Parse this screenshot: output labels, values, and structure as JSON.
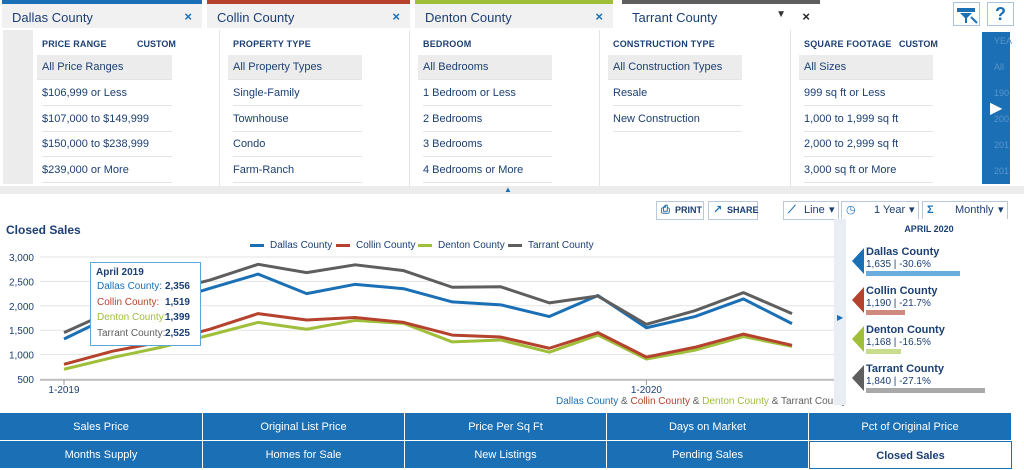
{
  "tabs": [
    {
      "label": "Dallas County",
      "color": "#1a6fb5"
    },
    {
      "label": "Collin County",
      "color": "#b5422d"
    },
    {
      "label": "Denton County",
      "color": "#9fbe3a"
    },
    {
      "label": "Tarrant County",
      "color": "#5e5e5e"
    }
  ],
  "tab_close": "×",
  "tab_dropdown": "▼",
  "toolbar": {
    "filter_icon": "filter-icon",
    "help_label": "?"
  },
  "filters": [
    {
      "header": "PRICE RANGE",
      "custom": "CUSTOM",
      "options": [
        "All Price Ranges",
        "$106,999 or Less",
        "$107,000 to $149,999",
        "$150,000 to $238,999",
        "$239,000 or More"
      ]
    },
    {
      "header": "PROPERTY TYPE",
      "custom": "",
      "options": [
        "All Property Types",
        "Single-Family",
        "Townhouse",
        "Condo",
        "Farm-Ranch"
      ]
    },
    {
      "header": "BEDROOM",
      "custom": "",
      "options": [
        "All Bedrooms",
        "1 Bedroom or Less",
        "2 Bedrooms",
        "3 Bedrooms",
        "4 Bedrooms or More"
      ]
    },
    {
      "header": "CONSTRUCTION TYPE",
      "custom": "",
      "options": [
        "All Construction Types",
        "Resale",
        "New Construction"
      ]
    },
    {
      "header": "SQUARE FOOTAGE",
      "custom": "CUSTOM",
      "options": [
        "All Sizes",
        "999 sq ft or Less",
        "1,000 to 1,999 sq ft",
        "2,000 to 2,999 sq ft",
        "3,000 sq ft or More"
      ]
    }
  ],
  "year_column": {
    "header": "YEA",
    "faded": [
      "All",
      "190",
      "200",
      "201",
      "201"
    ]
  },
  "controls": {
    "print": "PRINT",
    "share": "SHARE",
    "chart_type": "Line",
    "period": "1 Year",
    "interval": "Monthly",
    "caret": "▾"
  },
  "chart": {
    "title": "Closed Sales",
    "caption_parts": [
      "Dallas County",
      " & ",
      "Collin County",
      " & ",
      "Denton County",
      " & ",
      "Tarrant County"
    ]
  },
  "tooltip": {
    "header": "April 2019",
    "rows": [
      {
        "label": "Dallas County:",
        "value": "2,356"
      },
      {
        "label": "Collin County:",
        "value": "1,519"
      },
      {
        "label": "Denton County:",
        "value": "1,399"
      },
      {
        "label": "Tarrant County:",
        "value": "2,525"
      }
    ]
  },
  "chart_data": {
    "type": "line",
    "title": "Closed Sales",
    "x": [
      "2019-01",
      "2019-02",
      "2019-03",
      "2019-04",
      "2019-05",
      "2019-06",
      "2019-07",
      "2019-08",
      "2019-09",
      "2019-10",
      "2019-11",
      "2019-12",
      "2020-01",
      "2020-02",
      "2020-03",
      "2020-04"
    ],
    "x_tick_labels": [
      {
        "index": 0,
        "label": "1-2019"
      },
      {
        "index": 12,
        "label": "1-2020"
      }
    ],
    "y_ticks": [
      500,
      1000,
      1500,
      2000,
      2500,
      3000
    ],
    "y_tick_labels": [
      "500",
      "1,000",
      "1,500",
      "2,000",
      "2,500",
      "3,000"
    ],
    "ylim": [
      500,
      3000
    ],
    "grid": true,
    "legend_position": "top",
    "series": [
      {
        "name": "Dallas County",
        "color": "#1a6fb5",
        "values": [
          1320,
          1800,
          2050,
          2356,
          2650,
          2250,
          2440,
          2350,
          2080,
          2020,
          1780,
          2210,
          1550,
          1780,
          2140,
          1635
        ]
      },
      {
        "name": "Collin County",
        "color": "#b5422d",
        "values": [
          800,
          1070,
          1260,
          1519,
          1840,
          1710,
          1760,
          1660,
          1400,
          1360,
          1130,
          1450,
          950,
          1150,
          1420,
          1190
        ]
      },
      {
        "name": "Denton County",
        "color": "#9fbe3a",
        "values": [
          700,
          940,
          1150,
          1399,
          1660,
          1520,
          1700,
          1640,
          1260,
          1300,
          1050,
          1400,
          910,
          1090,
          1370,
          1168
        ]
      },
      {
        "name": "Tarrant County",
        "color": "#5e5e5e",
        "values": [
          1450,
          1900,
          2280,
          2525,
          2850,
          2680,
          2840,
          2720,
          2380,
          2390,
          2060,
          2200,
          1620,
          1900,
          2270,
          1840
        ]
      }
    ]
  },
  "summary": {
    "header": "APRIL 2020",
    "items": [
      {
        "name": "Dallas County",
        "value": "1,635 | -30.6%",
        "color": "#1a6fb5",
        "bar_color": "#6aaee0",
        "bar_fraction": 0.65
      },
      {
        "name": "Collin County",
        "value": "1,190 | -21.7%",
        "color": "#b5422d",
        "bar_color": "#cf8a80",
        "bar_fraction": 0.27
      },
      {
        "name": "Denton County",
        "value": "1,168 | -16.5%",
        "color": "#9fbe3a",
        "bar_color": "#c8dc8e",
        "bar_fraction": 0.24
      },
      {
        "name": "Tarrant County",
        "value": "1,840 | -27.1%",
        "color": "#5e5e5e",
        "bar_color": "#a9a9a9",
        "bar_fraction": 0.82
      }
    ]
  },
  "metrics": {
    "row1": [
      "Sales Price",
      "Original List Price",
      "Price Per Sq Ft",
      "Days on Market",
      "Pct of Original Price"
    ],
    "row2": [
      "Months Supply",
      "Homes for Sale",
      "New Listings",
      "Pending Sales",
      "Closed Sales"
    ],
    "active": "Closed Sales"
  }
}
